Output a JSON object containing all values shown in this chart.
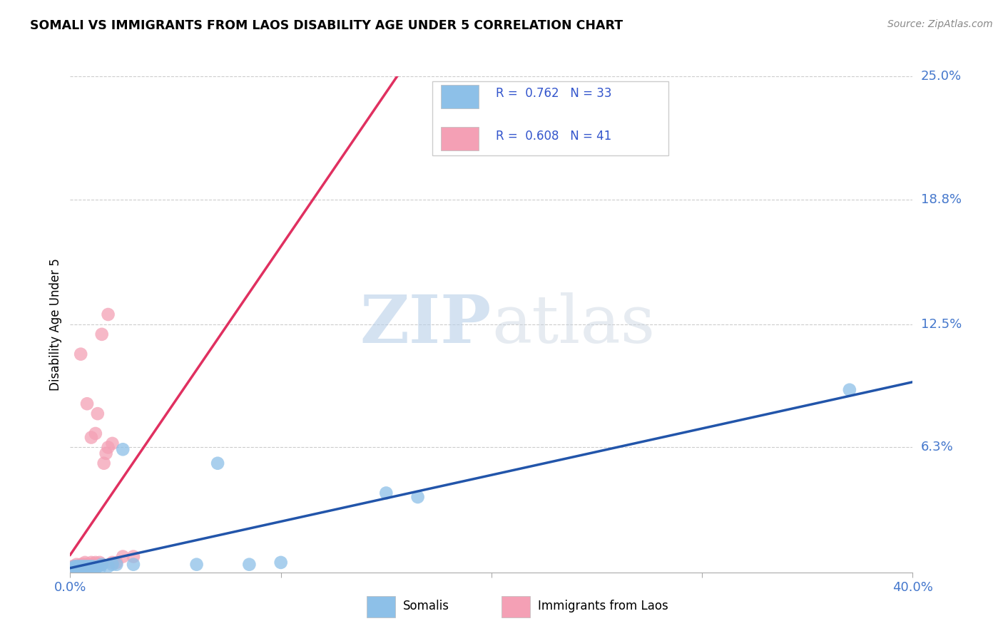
{
  "title": "SOMALI VS IMMIGRANTS FROM LAOS DISABILITY AGE UNDER 5 CORRELATION CHART",
  "source": "Source: ZipAtlas.com",
  "ylabel": "Disability Age Under 5",
  "xlim": [
    0.0,
    0.4
  ],
  "ylim": [
    0.0,
    0.25
  ],
  "xticks": [
    0.0,
    0.1,
    0.2,
    0.3,
    0.4
  ],
  "xticklabels": [
    "0.0%",
    "",
    "",
    "",
    "40.0%"
  ],
  "ytick_positions": [
    0.0,
    0.063,
    0.125,
    0.188,
    0.25
  ],
  "ytick_labels": [
    "",
    "6.3%",
    "12.5%",
    "18.8%",
    "25.0%"
  ],
  "somali_color": "#8dc0e8",
  "laos_color": "#f4a0b5",
  "somali_R": 0.762,
  "somali_N": 33,
  "laos_R": 0.608,
  "laos_N": 41,
  "somali_line_color": "#2255aa",
  "laos_line_color": "#e03060",
  "legend_somali_label": "Somalis",
  "legend_laos_label": "Immigrants from Laos",
  "somali_x": [
    0.001,
    0.002,
    0.003,
    0.003,
    0.004,
    0.004,
    0.005,
    0.005,
    0.006,
    0.006,
    0.007,
    0.007,
    0.008,
    0.008,
    0.009,
    0.01,
    0.011,
    0.012,
    0.013,
    0.014,
    0.015,
    0.018,
    0.02,
    0.022,
    0.025,
    0.03,
    0.06,
    0.07,
    0.085,
    0.1,
    0.15,
    0.165,
    0.37
  ],
  "somali_y": [
    0.002,
    0.003,
    0.002,
    0.003,
    0.002,
    0.003,
    0.002,
    0.003,
    0.002,
    0.003,
    0.003,
    0.002,
    0.003,
    0.002,
    0.003,
    0.003,
    0.003,
    0.002,
    0.003,
    0.002,
    0.004,
    0.003,
    0.004,
    0.004,
    0.062,
    0.004,
    0.004,
    0.055,
    0.004,
    0.005,
    0.04,
    0.038,
    0.092
  ],
  "laos_x": [
    0.001,
    0.001,
    0.002,
    0.002,
    0.003,
    0.003,
    0.003,
    0.004,
    0.004,
    0.005,
    0.005,
    0.006,
    0.006,
    0.007,
    0.007,
    0.007,
    0.008,
    0.008,
    0.009,
    0.01,
    0.01,
    0.011,
    0.012,
    0.013,
    0.014,
    0.015,
    0.016,
    0.017,
    0.018,
    0.02,
    0.022,
    0.005,
    0.008,
    0.01,
    0.012,
    0.013,
    0.015,
    0.018,
    0.02,
    0.025,
    0.03
  ],
  "laos_y": [
    0.002,
    0.003,
    0.002,
    0.003,
    0.002,
    0.003,
    0.004,
    0.002,
    0.003,
    0.003,
    0.004,
    0.003,
    0.004,
    0.003,
    0.004,
    0.005,
    0.003,
    0.004,
    0.003,
    0.004,
    0.005,
    0.004,
    0.005,
    0.004,
    0.005,
    0.004,
    0.055,
    0.06,
    0.063,
    0.005,
    0.005,
    0.11,
    0.085,
    0.068,
    0.07,
    0.08,
    0.12,
    0.13,
    0.065,
    0.008,
    0.008
  ],
  "background_color": "#ffffff",
  "grid_color": "#cccccc"
}
